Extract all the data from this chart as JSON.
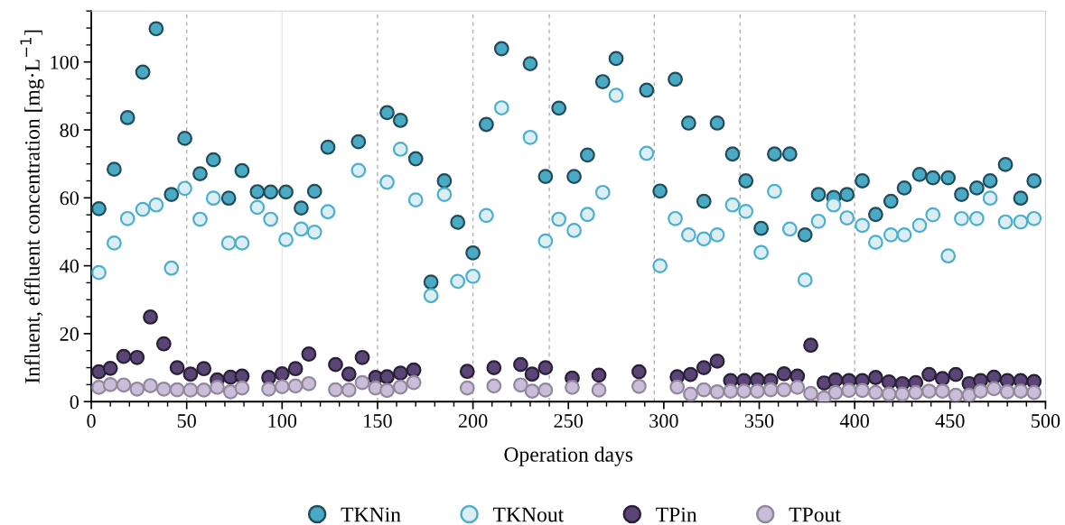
{
  "chart_data": {
    "type": "scatter",
    "xlabel": "Operation days",
    "ylabel": "Influent, effluent concentration [mg·L$^{−1}$]",
    "xlim": [
      0,
      500
    ],
    "xticks": [
      0,
      50,
      100,
      150,
      200,
      250,
      300,
      350,
      400,
      450,
      500
    ],
    "ylim": [
      0,
      115
    ],
    "yticks": [
      0,
      20,
      40,
      60,
      80,
      100
    ],
    "grid": false,
    "legend": "bottom",
    "marker": "circle",
    "ref_lines": [
      {
        "axis": "x",
        "value": 50,
        "line_style": "dashed",
        "color": "#b0b0b0"
      },
      {
        "axis": "x",
        "value": 100,
        "line_style": "solid",
        "color": "#e8e8e8"
      },
      {
        "axis": "x",
        "value": 150,
        "line_style": "dashed",
        "color": "#b0b0b0"
      },
      {
        "axis": "x",
        "value": 200,
        "line_style": "dashed",
        "color": "#b0b0b0"
      },
      {
        "axis": "x",
        "value": 240,
        "line_style": "dashed",
        "color": "#b0b0b0"
      },
      {
        "axis": "x",
        "value": 295,
        "line_style": "dashed",
        "color": "#b0b0b0"
      },
      {
        "axis": "x",
        "value": 340,
        "line_style": "dashed",
        "color": "#b0b0b0"
      },
      {
        "axis": "x",
        "value": 400,
        "line_style": "dashed",
        "color": "#b0b0b0"
      }
    ],
    "series": [
      {
        "name": "TKNin",
        "color": "#4aaac5",
        "x": [
          4,
          12,
          19,
          27,
          34,
          42,
          49,
          57,
          64,
          72,
          79,
          87,
          94,
          102,
          110,
          117,
          124,
          140,
          155,
          162,
          170,
          178,
          185,
          192,
          200,
          207,
          215,
          230,
          238,
          245,
          253,
          260,
          268,
          275,
          291,
          298,
          306,
          313,
          321,
          328,
          336,
          343,
          351,
          358,
          366,
          374,
          381,
          389,
          396,
          404,
          411,
          419,
          426,
          434,
          441,
          449,
          456,
          464,
          471,
          479,
          487,
          494
        ],
        "values": [
          56.8,
          68.4,
          83.6,
          97,
          109.8,
          61,
          77.5,
          67.1,
          71.2,
          59.9,
          68,
          61.8,
          61.7,
          61.7,
          57,
          61.9,
          74.9,
          76.5,
          85.1,
          82.8,
          71.5,
          35.2,
          65,
          52.8,
          43.8,
          81.6,
          103.9,
          99.5,
          66.3,
          86.4,
          66.3,
          72.6,
          94.2,
          101,
          91.7,
          62,
          94.9,
          82,
          59,
          82,
          72.9,
          65,
          51,
          72.9,
          72.9,
          49.1,
          61,
          60.1,
          61,
          65,
          55.1,
          59,
          62.9,
          66.9,
          65.9,
          65.9,
          61,
          62.9,
          65,
          69.8,
          59.9,
          65
        ]
      },
      {
        "name": "TKNout",
        "color": "#dcedf3",
        "x": [
          4,
          12,
          19,
          27,
          34,
          42,
          49,
          57,
          64,
          72,
          79,
          87,
          94,
          102,
          110,
          117,
          124,
          140,
          155,
          162,
          170,
          178,
          185,
          192,
          200,
          207,
          215,
          230,
          238,
          245,
          253,
          260,
          268,
          275,
          291,
          298,
          306,
          313,
          321,
          328,
          336,
          343,
          351,
          358,
          366,
          374,
          381,
          389,
          396,
          404,
          411,
          419,
          426,
          434,
          441,
          449,
          456,
          464,
          471,
          479,
          487,
          494
        ],
        "values": [
          38,
          46.7,
          53.9,
          56.6,
          57.9,
          39.3,
          62.8,
          53.7,
          59.9,
          46.7,
          46.7,
          57.2,
          53.7,
          47.7,
          50.8,
          49.9,
          55.9,
          68.1,
          64.6,
          74.3,
          59.4,
          31.2,
          61,
          35.4,
          36.9,
          54.8,
          86.5,
          77.8,
          47.3,
          53.7,
          50.4,
          55.1,
          61.6,
          90.2,
          73.1,
          40,
          53.9,
          49.1,
          47.9,
          49.1,
          57.9,
          56,
          43.9,
          61.9,
          50.8,
          35.8,
          53.1,
          57.9,
          54.1,
          51.9,
          46.9,
          49.1,
          49.1,
          51.9,
          55,
          42.9,
          53.9,
          53.9,
          59.9,
          52.9,
          52.9,
          53.9
        ]
      },
      {
        "name": "TPin",
        "color": "#5b4577",
        "x": [
          4,
          10,
          17,
          24,
          31,
          38,
          45,
          52,
          59,
          66,
          73,
          79,
          93,
          100,
          107,
          114,
          128,
          135,
          142,
          149,
          155,
          162,
          169,
          197,
          211,
          225,
          231,
          238,
          252,
          266,
          287,
          307,
          314,
          321,
          328,
          335,
          342,
          349,
          356,
          363,
          370,
          377,
          384,
          390,
          397,
          404,
          411,
          418,
          425,
          432,
          439,
          446,
          453,
          460,
          466,
          473,
          480,
          487,
          494
        ],
        "values": [
          8.8,
          9.8,
          13.3,
          13,
          24.9,
          17,
          10,
          8.1,
          9.7,
          6.4,
          7.2,
          7.5,
          7.1,
          8.2,
          9.7,
          14,
          10.9,
          8.1,
          13,
          7.1,
          7.3,
          8.4,
          9.3,
          8.9,
          10,
          10.9,
          8.1,
          10,
          6.9,
          7.8,
          8.8,
          7.3,
          8,
          10,
          11.9,
          6.2,
          6.2,
          6.4,
          6.2,
          8.2,
          7.5,
          16.6,
          5.5,
          6.4,
          6.2,
          6.2,
          7.1,
          5.8,
          5.3,
          5.6,
          8,
          6.8,
          8,
          5.3,
          6.2,
          7.2,
          6.2,
          6.2,
          5.9
        ]
      },
      {
        "name": "TPout",
        "color": "#c9bdd9",
        "x": [
          4,
          10,
          17,
          24,
          31,
          38,
          45,
          52,
          59,
          66,
          73,
          79,
          93,
          100,
          107,
          114,
          128,
          135,
          142,
          149,
          155,
          162,
          169,
          197,
          211,
          225,
          231,
          238,
          252,
          266,
          287,
          307,
          314,
          321,
          328,
          335,
          342,
          349,
          356,
          363,
          370,
          377,
          384,
          390,
          397,
          404,
          411,
          418,
          425,
          432,
          439,
          446,
          453,
          460,
          466,
          473,
          480,
          487,
          494
        ],
        "values": [
          4.2,
          5,
          4.9,
          3.7,
          4.7,
          3.7,
          3.5,
          3.4,
          3.4,
          4.2,
          2.9,
          4,
          3.7,
          4.4,
          4.6,
          5.3,
          3.5,
          3.4,
          5.6,
          4,
          3.3,
          4.3,
          5.6,
          4,
          4.6,
          4.9,
          3.1,
          3.4,
          4.2,
          3.4,
          4.5,
          4.3,
          2.2,
          3.5,
          2.9,
          3.1,
          3.1,
          3.1,
          3.5,
          3.5,
          4.2,
          2.4,
          1.1,
          2.7,
          3.3,
          3.3,
          2.7,
          2.2,
          2.2,
          2.7,
          3.1,
          3.1,
          1.9,
          1.9,
          3.1,
          3.8,
          2.9,
          3.1,
          2.7
        ]
      }
    ]
  }
}
